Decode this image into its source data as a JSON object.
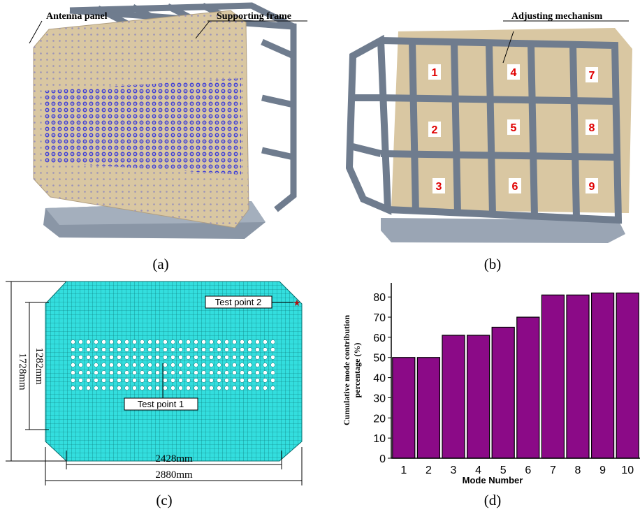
{
  "chart_data": {
    "type": "bar",
    "caption": "(d)",
    "x_label": "Mode Number",
    "y_label": [
      "Cumulative mode contribution",
      "percentage (%)"
    ],
    "categories": [
      "1",
      "2",
      "3",
      "4",
      "5",
      "6",
      "7",
      "8",
      "9",
      "10"
    ],
    "values": [
      50,
      50,
      61,
      61,
      65,
      70,
      81,
      81,
      82,
      82
    ],
    "color": "#8b0a87",
    "ylim": [
      0,
      87
    ],
    "yticks": [
      0,
      10,
      20,
      30,
      40,
      50,
      60,
      70,
      80
    ]
  },
  "figure": {
    "panel_a": {
      "caption": "(a)",
      "labels": [
        "Antenna panel",
        "Supporting frame"
      ]
    },
    "panel_b": {
      "caption": "(b)",
      "label": "Adjusting mechanism",
      "markers": [
        "1",
        "2",
        "3",
        "4",
        "5",
        "6",
        "7",
        "8",
        "9"
      ]
    },
    "panel_c": {
      "caption": "(c)",
      "dimensions": [
        "1728mm",
        "1282mm",
        "2428mm",
        "2880mm"
      ],
      "test_points": [
        "Test point 1",
        "Test point 2"
      ]
    }
  }
}
